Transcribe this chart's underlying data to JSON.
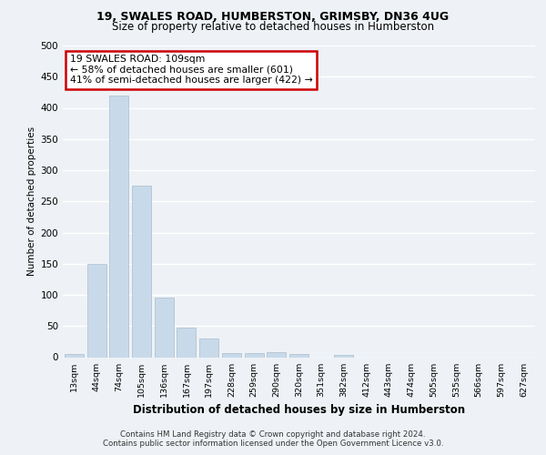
{
  "title1": "19, SWALES ROAD, HUMBERSTON, GRIMSBY, DN36 4UG",
  "title2": "Size of property relative to detached houses in Humberston",
  "xlabel": "Distribution of detached houses by size in Humberston",
  "ylabel": "Number of detached properties",
  "categories": [
    "13sqm",
    "44sqm",
    "74sqm",
    "105sqm",
    "136sqm",
    "167sqm",
    "197sqm",
    "228sqm",
    "259sqm",
    "290sqm",
    "320sqm",
    "351sqm",
    "382sqm",
    "412sqm",
    "443sqm",
    "474sqm",
    "505sqm",
    "535sqm",
    "566sqm",
    "597sqm",
    "627sqm"
  ],
  "values": [
    5,
    150,
    420,
    275,
    95,
    48,
    30,
    6,
    7,
    8,
    5,
    0,
    4,
    0,
    0,
    0,
    0,
    0,
    0,
    0,
    0
  ],
  "bar_color_normal": "#c8daea",
  "bar_color_highlight": "#c8daea",
  "highlight_index": 2,
  "annotation_box_text": "19 SWALES ROAD: 109sqm\n← 58% of detached houses are smaller (601)\n41% of semi-detached houses are larger (422) →",
  "annotation_box_color": "#cc0000",
  "ylim": [
    0,
    500
  ],
  "yticks": [
    0,
    50,
    100,
    150,
    200,
    250,
    300,
    350,
    400,
    450,
    500
  ],
  "footnote1": "Contains HM Land Registry data © Crown copyright and database right 2024.",
  "footnote2": "Contains public sector information licensed under the Open Government Licence v3.0.",
  "background_color": "#eef2f6",
  "plot_bg_color": "#eef2f6",
  "grid_color": "#ffffff"
}
